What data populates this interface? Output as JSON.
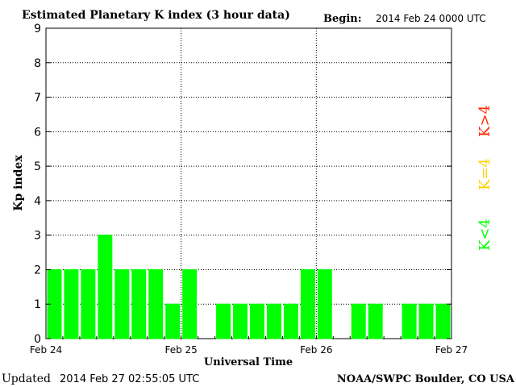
{
  "header": {
    "title": "Estimated Planetary K index (3 hour data)",
    "begin_label": "Begin:",
    "begin_value": "2014 Feb 24 0000 UTC"
  },
  "footer": {
    "updated_label": "Updated",
    "updated_value": "2014 Feb 27 02:55:05 UTC",
    "credit": "NOAA/SWPC Boulder, CO USA"
  },
  "legend": {
    "high": {
      "label": "K>4",
      "color": "#ff2a00"
    },
    "equal": {
      "label": "K=4",
      "color": "#ffd200"
    },
    "low": {
      "label": "K<4",
      "color": "#00ff00"
    }
  },
  "chart_data": {
    "type": "bar",
    "title": "Estimated Planetary K index (3 hour data)",
    "xlabel": "Universal Time",
    "ylabel": "Kp index",
    "ylim": [
      0,
      9
    ],
    "yticks": [
      "0",
      "1",
      "2",
      "3",
      "4",
      "5",
      "6",
      "7",
      "8",
      "9"
    ],
    "xticks": [
      "Feb 24",
      "Feb 25",
      "Feb 26",
      "Feb 27"
    ],
    "grid": true,
    "bar_color": "#00ff00",
    "categories": [
      "Feb 24 00",
      "Feb 24 03",
      "Feb 24 06",
      "Feb 24 09",
      "Feb 24 12",
      "Feb 24 15",
      "Feb 24 18",
      "Feb 24 21",
      "Feb 25 00",
      "Feb 25 03",
      "Feb 25 06",
      "Feb 25 09",
      "Feb 25 12",
      "Feb 25 15",
      "Feb 25 18",
      "Feb 25 21",
      "Feb 26 00",
      "Feb 26 03",
      "Feb 26 06",
      "Feb 26 09",
      "Feb 26 12",
      "Feb 26 15",
      "Feb 26 18",
      "Feb 26 21"
    ],
    "values": [
      2,
      2,
      2,
      3,
      2,
      2,
      2,
      1,
      2,
      null,
      1,
      1,
      1,
      1,
      1,
      2,
      2,
      null,
      1,
      1,
      null,
      1,
      1,
      1
    ]
  }
}
